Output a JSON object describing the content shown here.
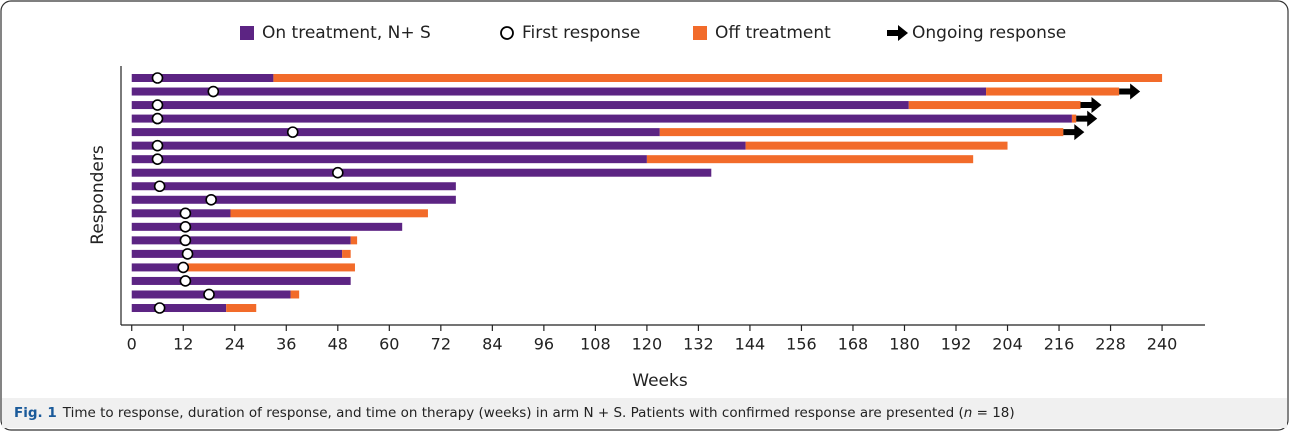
{
  "chart_data": {
    "type": "swimmer",
    "x_label": "Weeks",
    "y_label": "Responders",
    "xlim": [
      -2.5,
      250
    ],
    "xticks": [
      0,
      12,
      24,
      36,
      48,
      60,
      72,
      84,
      96,
      108,
      120,
      132,
      144,
      156,
      168,
      180,
      192,
      204,
      216,
      228,
      240
    ],
    "series": [
      {
        "name": "On treatment, N+ S",
        "color": "#5c2483",
        "marker": "bar",
        "values": [
          33,
          199,
          181,
          219,
          123,
          143,
          120,
          135,
          75.5,
          75.5,
          23,
          63,
          51,
          49,
          11,
          51,
          37,
          22
        ]
      },
      {
        "name": "First response",
        "color": "#ffffff",
        "marker": "circle",
        "values": [
          6,
          19,
          6,
          6,
          37.5,
          6,
          6,
          48,
          6.5,
          18.5,
          12.5,
          12.5,
          12.5,
          13,
          12,
          12.5,
          18,
          6.5
        ]
      },
      {
        "name": "Off treatment",
        "color": "#f26b2a",
        "marker": "bar",
        "values": [
          207,
          31,
          40,
          1,
          94,
          61,
          76,
          null,
          null,
          null,
          46,
          null,
          1.5,
          2,
          41,
          null,
          2,
          7
        ]
      },
      {
        "name": "Ongoing response",
        "color": "#000000",
        "marker": "arrow",
        "values": [
          false,
          true,
          true,
          true,
          true,
          false,
          false,
          false,
          false,
          false,
          false,
          false,
          false,
          false,
          false,
          false,
          false,
          false
        ]
      }
    ],
    "caption": {
      "label": "Fig. 1",
      "text_before": "Time to response, duration of response, and time on therapy (weeks) in arm N + S. Patients with confirmed response are presented (",
      "italic": "n",
      "text_after": " = 18)"
    }
  }
}
